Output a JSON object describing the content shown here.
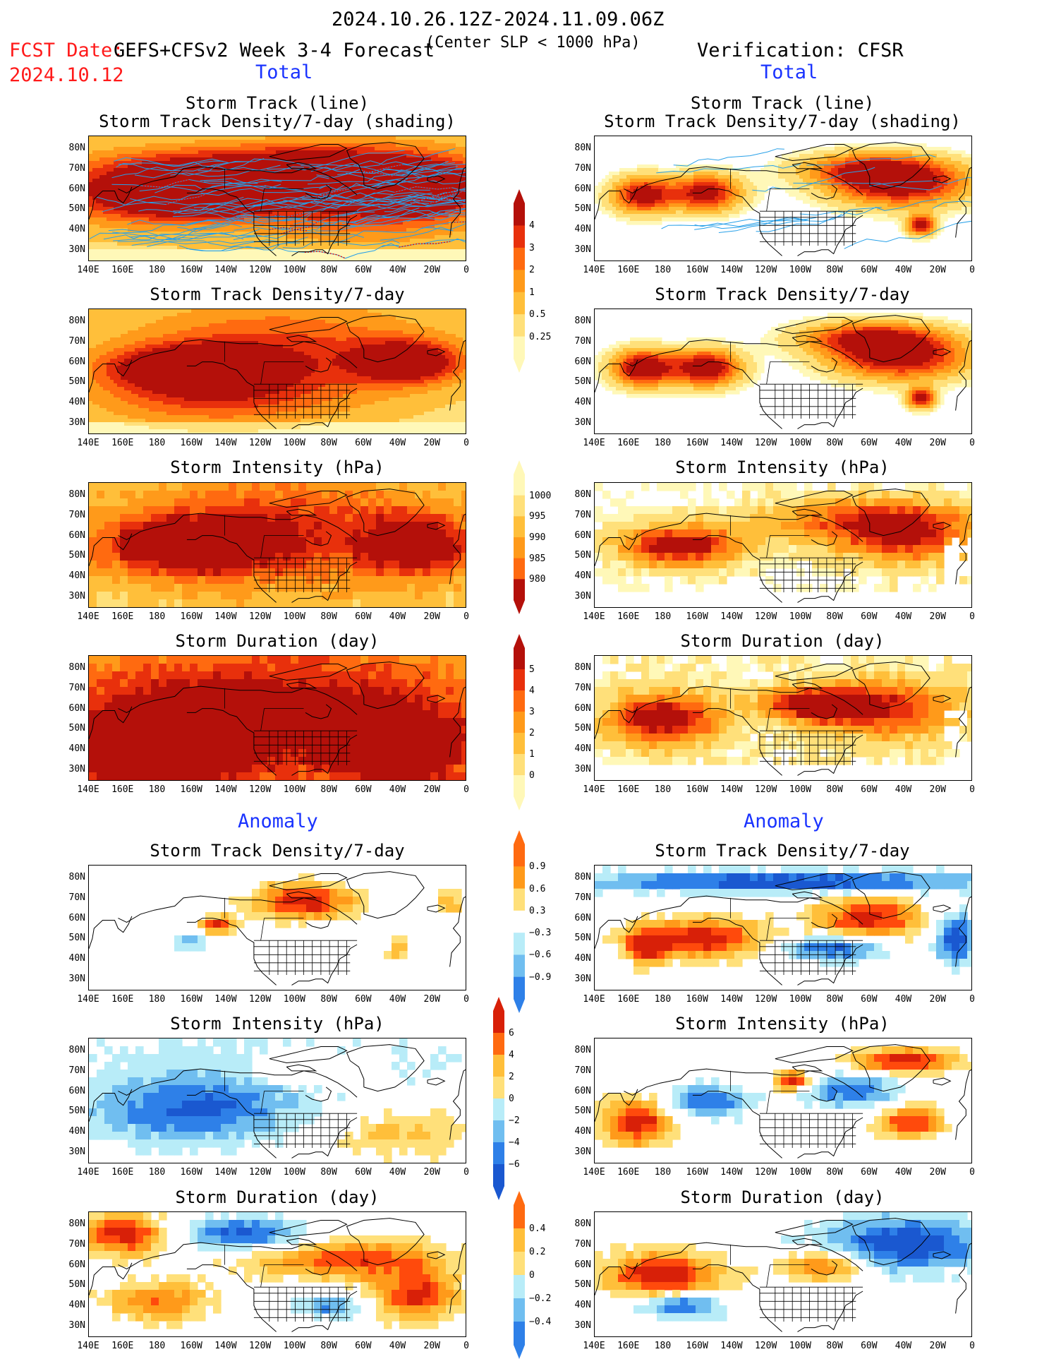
{
  "header": {
    "period": "2024.10.26.12Z-2024.11.09.06Z",
    "fcst_label": "FCST Date:",
    "fcst_date": "2024.10.12",
    "model": "GEFS+CFSv2 Week 3-4 Forecast",
    "criterion": "(Center SLP < 1000 hPa)",
    "verification": "Verification: CFSR"
  },
  "sections": {
    "total_left": "Total",
    "total_right": "Total",
    "anomaly_left": "Anomaly",
    "anomaly_right": "Anomaly"
  },
  "panel_titles": {
    "track_line": "Storm Track (line)",
    "track_shading": "Storm Track Density/7-day (shading)",
    "density": "Storm Track Density/7-day",
    "intensity": "Storm Intensity (hPa)",
    "duration": "Storm Duration (day)"
  },
  "axes": {
    "lat_labels": [
      "80N",
      "70N",
      "60N",
      "50N",
      "40N",
      "30N"
    ],
    "lon_labels": [
      "140E",
      "160E",
      "180",
      "160W",
      "140W",
      "120W",
      "100W",
      "80W",
      "60W",
      "40W",
      "20W",
      "0"
    ]
  },
  "colorbars": {
    "density_total": [
      "4",
      "3",
      "2",
      "1",
      "0.5",
      "0.25"
    ],
    "intensity_total": [
      "1000",
      "995",
      "990",
      "985",
      "980"
    ],
    "duration_total": [
      "5",
      "4",
      "3",
      "2",
      "1",
      "0"
    ],
    "density_anom": [
      "0.9",
      "0.6",
      "0.3",
      "−0.3",
      "−0.6",
      "−0.9"
    ],
    "intensity_anom": [
      "6",
      "4",
      "2",
      "0",
      "−2",
      "−4",
      "−6"
    ],
    "duration_anom": [
      "0.4",
      "0.2",
      "0",
      "−0.2",
      "−0.4"
    ]
  },
  "palette": {
    "warm": [
      "#fff8b8",
      "#ffe07a",
      "#ffbf3a",
      "#ff9a1a",
      "#ff6a10",
      "#e8300c",
      "#b4100a"
    ],
    "cool": [
      "#b8ecf8",
      "#70bef0",
      "#2e80e8",
      "#1a58d0"
    ],
    "track_line": "#27a0e8",
    "track_hi": "#e01010"
  }
}
